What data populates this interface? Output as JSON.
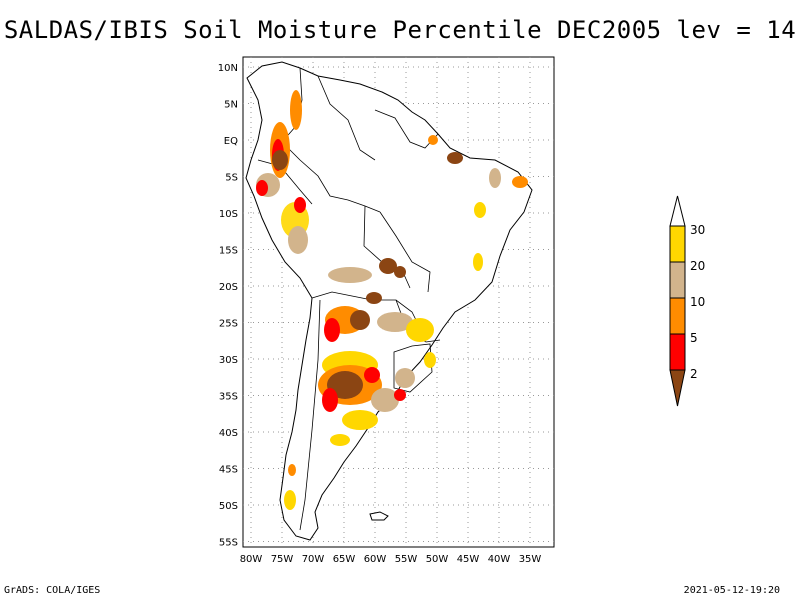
{
  "title": "SALDAS/IBIS Soil Moisture Percentile DEC2005 lev = 14",
  "footer": {
    "left": "GrADS: COLA/IGES",
    "right": "2021-05-12-19:20"
  },
  "chart_data": {
    "type": "heatmap",
    "title": "SALDAS/IBIS Soil Moisture Percentile DEC2005 lev = 14",
    "region": "South America",
    "lon_range": [
      -81,
      -31
    ],
    "lat_range": [
      -56,
      11
    ],
    "lon_ticks": [
      "80W",
      "75W",
      "70W",
      "65W",
      "60W",
      "55W",
      "50W",
      "45W",
      "40W",
      "35W"
    ],
    "lat_ticks": [
      "10N",
      "5N",
      "EQ",
      "5S",
      "10S",
      "15S",
      "20S",
      "25S",
      "30S",
      "35S",
      "40S",
      "45S",
      "50S",
      "55S"
    ],
    "legend": {
      "levels": [
        "2",
        "5",
        "10",
        "20",
        "30"
      ],
      "colors": [
        "#8B4513",
        "#FF0000",
        "#FF8C00",
        "#D2B48C",
        "#FFD700",
        "#FFFFFF"
      ]
    }
  }
}
